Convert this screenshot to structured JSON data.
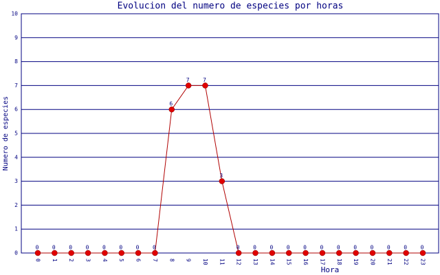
{
  "chart_data": {
    "type": "line",
    "title": "Evolucion del numero de especies por horas",
    "x_label": "Hora",
    "y_label": "Numero de especies",
    "categories": [
      "0",
      "1",
      "2",
      "3",
      "4",
      "5",
      "6",
      "7",
      "8",
      "9",
      "10",
      "11",
      "12",
      "13",
      "14",
      "15",
      "16",
      "17",
      "18",
      "19",
      "20",
      "21",
      "22",
      "23"
    ],
    "values": [
      0,
      0,
      0,
      0,
      0,
      0,
      0,
      0,
      6,
      7,
      7,
      3,
      0,
      0,
      0,
      0,
      0,
      0,
      0,
      0,
      0,
      0,
      0,
      0
    ],
    "line_color": "#b00000",
    "marker_color": "#e00000",
    "ylim": [
      0,
      10
    ],
    "yticks": [
      0,
      1,
      2,
      3,
      4,
      5,
      6,
      7,
      8,
      9,
      10
    ],
    "grid": true
  }
}
